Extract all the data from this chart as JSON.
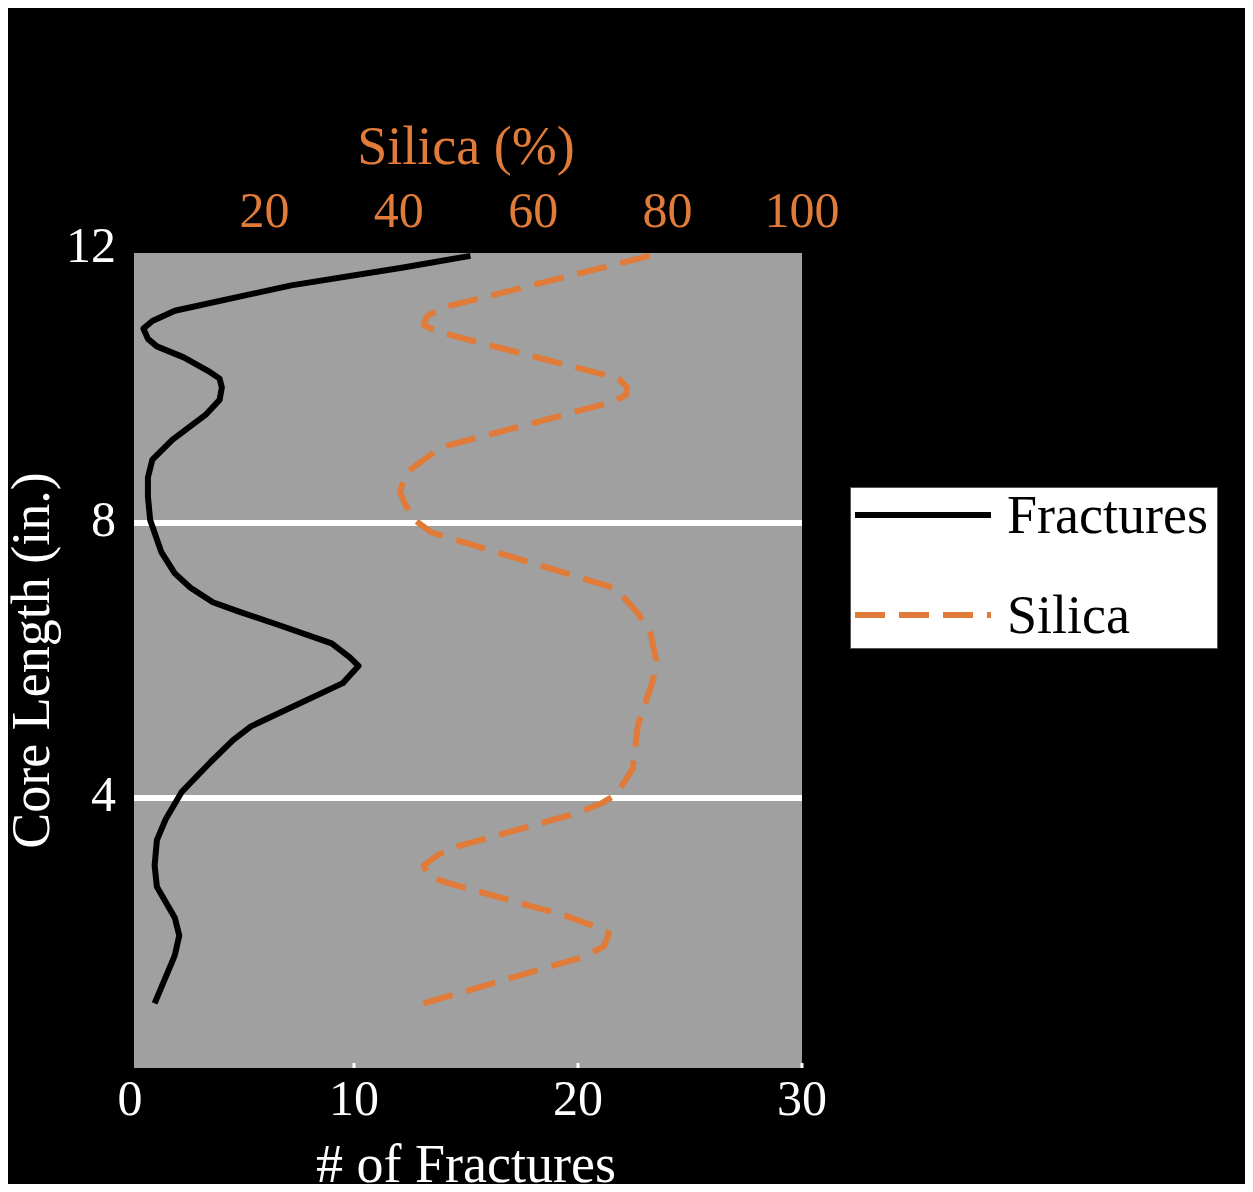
{
  "chart_data": {
    "type": "line",
    "xlabel": "# of Fractures",
    "ylabel": "Core Length (in.)",
    "x2label": "Silica (%)",
    "xlim": [
      0,
      30
    ],
    "xticks": [
      0,
      10,
      20,
      30
    ],
    "x2lim": [
      0,
      100
    ],
    "x2ticks": [
      20,
      40,
      60,
      80,
      100
    ],
    "ylim": [
      0,
      12
    ],
    "yticks": [
      4,
      8,
      12
    ],
    "grid": "y",
    "legend": "right",
    "series": [
      {
        "name": "Fractures",
        "color": "#000000",
        "x": [
          15.2,
          12.2,
          7.2,
          2.0,
          1.0,
          0.6,
          0.8,
          1.2,
          2.4,
          3.5,
          4.0,
          4.1,
          4.0,
          3.4,
          1.9,
          1.0,
          0.8,
          0.8,
          0.9,
          1.4,
          2.0,
          2.7,
          3.7,
          4.8,
          6.7,
          9.0,
          9.8,
          10.2,
          9.5,
          5.4,
          4.6,
          3.6,
          2.3,
          1.6,
          1.2,
          1.1,
          1.2,
          2.0,
          2.2,
          2.0,
          1.1
        ],
        "values": [
          11.9,
          11.73,
          11.47,
          11.1,
          10.95,
          10.84,
          10.69,
          10.58,
          10.42,
          10.22,
          10.11,
          9.98,
          9.8,
          9.59,
          9.22,
          8.93,
          8.67,
          8.39,
          8.05,
          7.58,
          7.27,
          7.06,
          6.85,
          6.72,
          6.51,
          6.25,
          6.05,
          5.92,
          5.67,
          5.04,
          4.84,
          4.52,
          4.08,
          3.69,
          3.38,
          3.01,
          2.7,
          2.25,
          1.99,
          1.7,
          1.0
        ]
      },
      {
        "name": "Silica",
        "color": "#e07b39",
        "axis": "x2",
        "line_style": "dashed",
        "x": [
          77.3,
          46.7,
          44.2,
          43.7,
          45.9,
          69.7,
          72.7,
          74.0,
          73.8,
          71.8,
          47.5,
          45.3,
          41.0,
          40.2,
          40.8,
          42.1,
          44.8,
          71.3,
          72.9,
          75.6,
          77.5,
          78.3,
          77.8,
          75.6,
          74.8,
          72.4,
          70.2,
          66.7,
          49.1,
          45.9,
          43.7,
          44.5,
          47.5,
          64.8,
          69.2,
          71.3,
          70.5,
          67.5,
          43.7
        ],
        "values": [
          11.9,
          11.15,
          11.02,
          10.89,
          10.79,
          10.19,
          10.11,
          9.98,
          9.87,
          9.77,
          9.14,
          9.04,
          8.73,
          8.46,
          8.31,
          8.07,
          7.87,
          7.08,
          6.98,
          6.69,
          6.38,
          6.0,
          5.7,
          5.07,
          4.42,
          4.05,
          3.92,
          3.78,
          3.3,
          3.17,
          3.01,
          2.85,
          2.75,
          2.28,
          2.12,
          2.02,
          1.83,
          1.68,
          1.0
        ]
      }
    ]
  }
}
